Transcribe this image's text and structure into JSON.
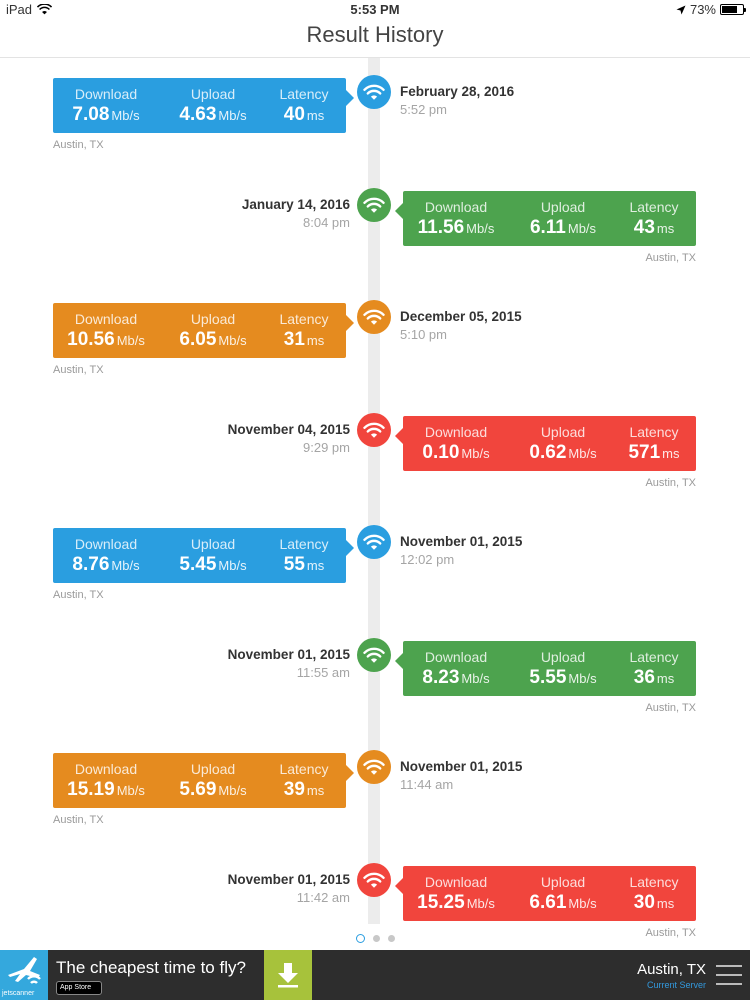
{
  "status_bar": {
    "device": "iPad",
    "time": "5:53 PM",
    "battery_text": "73%",
    "battery_level": 0.73
  },
  "nav": {
    "title": "Result History"
  },
  "colors": {
    "blue": "#2a9ee0",
    "green": "#4da34e",
    "orange": "#e58b1f",
    "red": "#f1453d"
  },
  "labels": {
    "download": "Download",
    "upload": "Upload",
    "latency": "Latency",
    "speed_unit": "Mb/s",
    "latency_unit": "ms"
  },
  "results": [
    {
      "date": "February 28, 2016",
      "time": "5:52 pm",
      "download": "7.08",
      "upload": "4.63",
      "latency": "40",
      "location": "Austin, TX",
      "color": "#2a9ee0",
      "side": "left"
    },
    {
      "date": "January 14, 2016",
      "time": "8:04 pm",
      "download": "11.56",
      "upload": "6.11",
      "latency": "43",
      "location": "Austin, TX",
      "color": "#4da34e",
      "side": "right"
    },
    {
      "date": "December 05, 2015",
      "time": "5:10 pm",
      "download": "10.56",
      "upload": "6.05",
      "latency": "31",
      "location": "Austin, TX",
      "color": "#e58b1f",
      "side": "left"
    },
    {
      "date": "November 04, 2015",
      "time": "9:29 pm",
      "download": "0.10",
      "upload": "0.62",
      "latency": "571",
      "location": "Austin, TX",
      "color": "#f1453d",
      "side": "right"
    },
    {
      "date": "November 01, 2015",
      "time": "12:02 pm",
      "download": "8.76",
      "upload": "5.45",
      "latency": "55",
      "location": "Austin, TX",
      "color": "#2a9ee0",
      "side": "left"
    },
    {
      "date": "November 01, 2015",
      "time": "11:55 am",
      "download": "8.23",
      "upload": "5.55",
      "latency": "36",
      "location": "Austin, TX",
      "color": "#4da34e",
      "side": "right"
    },
    {
      "date": "November 01, 2015",
      "time": "11:44 am",
      "download": "15.19",
      "upload": "5.69",
      "latency": "39",
      "location": "Austin, TX",
      "color": "#e58b1f",
      "side": "left"
    },
    {
      "date": "November 01, 2015",
      "time": "11:42 am",
      "download": "15.25",
      "upload": "6.61",
      "latency": "30",
      "location": "Austin, TX",
      "color": "#f1453d",
      "side": "right"
    }
  ],
  "pagination": {
    "pages": 3,
    "current": 1
  },
  "ad": {
    "brand": "jetscanner",
    "text": "The cheapest time to fly?",
    "store_badge": "App Store",
    "icon": "download-arrow-icon"
  },
  "server": {
    "name": "Austin, TX",
    "label": "Current Server"
  }
}
